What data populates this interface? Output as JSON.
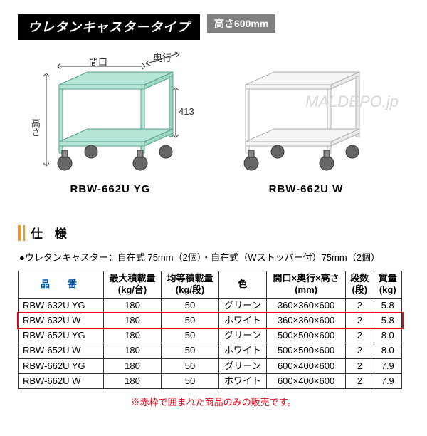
{
  "header": {
    "title": "ウレタンキャスタータイプ",
    "height_label": "高さ600mm"
  },
  "diagrams": {
    "left": {
      "width_label": "間口",
      "depth_label": "奥行",
      "height_label": "高さ",
      "shelf_height": "413",
      "model": "RBW-662U YG",
      "cart_color": "#b4e5d6",
      "cart_stroke": "#5aa090"
    },
    "right": {
      "model": "RBW-662U W",
      "cart_color": "#f5f5f5",
      "cart_stroke": "#b0b0b0"
    }
  },
  "watermark": "MALDEPO.jp",
  "spec": {
    "section_title": "仕 様",
    "caster_note": "●ウレタンキャスター：自在式 75mm（2個）・自在式（Wストッパー付）75mm（2個）",
    "columns": {
      "model": "品　番",
      "max_load": "最大積載量",
      "max_load_unit": "(kg/台)",
      "avg_load": "均等積載量",
      "avg_load_unit": "(kg/段)",
      "color": "色",
      "dims": "間口×奥行×高さ",
      "dims_unit": "(mm)",
      "tiers": "段数",
      "tiers_unit": "(段)",
      "mass": "質量",
      "mass_unit": "(kg)"
    },
    "rows": [
      {
        "model": "RBW-632U YG",
        "max": "180",
        "avg": "50",
        "color": "グリーン",
        "dims": "360×360×600",
        "tiers": "2",
        "mass": "5.8",
        "highlight": false
      },
      {
        "model": "RBW-632U W",
        "max": "180",
        "avg": "50",
        "color": "ホワイト",
        "dims": "360×360×600",
        "tiers": "2",
        "mass": "5.8",
        "highlight": true
      },
      {
        "model": "RBW-652U YG",
        "max": "180",
        "avg": "50",
        "color": "グリーン",
        "dims": "500×500×600",
        "tiers": "2",
        "mass": "8.0",
        "highlight": false
      },
      {
        "model": "RBW-652U W",
        "max": "180",
        "avg": "50",
        "color": "ホワイト",
        "dims": "500×500×600",
        "tiers": "2",
        "mass": "8.0",
        "highlight": false
      },
      {
        "model": "RBW-662U YG",
        "max": "180",
        "avg": "50",
        "color": "グリーン",
        "dims": "600×400×600",
        "tiers": "2",
        "mass": "7.9",
        "highlight": false
      },
      {
        "model": "RBW-662U W",
        "max": "180",
        "avg": "50",
        "color": "ホワイト",
        "dims": "600×400×600",
        "tiers": "2",
        "mass": "7.9",
        "highlight": false
      }
    ],
    "footnote": "※赤枠で囲まれた商品のみの販売です。",
    "highlight_color": "#e60012"
  }
}
